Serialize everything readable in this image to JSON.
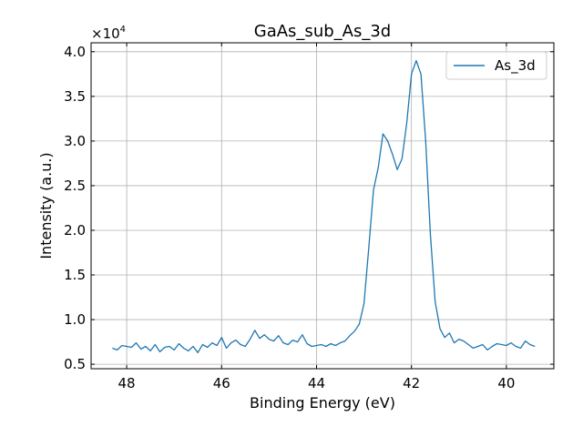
{
  "chart_data": {
    "type": "line",
    "title": "GaAs_sub_As_3d",
    "xlabel": "Binding Energy (eV)",
    "ylabel": "Intensity (a.u.)",
    "y_multiplier_base": "×10",
    "y_multiplier_exp": "4",
    "xlim": [
      48.75,
      39.0
    ],
    "ylim": [
      0.45,
      4.1
    ],
    "x_reversed": true,
    "grid": true,
    "legend_position": "upper-right",
    "x_ticks": [
      48,
      46,
      44,
      42,
      40
    ],
    "x_tick_labels": [
      "48",
      "46",
      "44",
      "42",
      "40"
    ],
    "y_ticks": [
      0.5,
      1.0,
      1.5,
      2.0,
      2.5,
      3.0,
      3.5,
      4.0
    ],
    "y_tick_labels": [
      "0.5",
      "1.0",
      "1.5",
      "2.0",
      "2.5",
      "3.0",
      "3.5",
      "4.0"
    ],
    "series": [
      {
        "name": "As_3d",
        "color": "#1f77b4",
        "x": [
          48.3,
          48.2,
          48.1,
          48.0,
          47.9,
          47.8,
          47.7,
          47.6,
          47.5,
          47.4,
          47.3,
          47.2,
          47.1,
          47.0,
          46.9,
          46.8,
          46.7,
          46.6,
          46.5,
          46.4,
          46.3,
          46.2,
          46.1,
          46.0,
          45.9,
          45.8,
          45.7,
          45.6,
          45.5,
          45.4,
          45.3,
          45.2,
          45.1,
          45.0,
          44.9,
          44.8,
          44.7,
          44.6,
          44.5,
          44.4,
          44.3,
          44.2,
          44.1,
          44.0,
          43.9,
          43.8,
          43.7,
          43.6,
          43.5,
          43.4,
          43.3,
          43.2,
          43.1,
          43.0,
          42.9,
          42.8,
          42.7,
          42.6,
          42.5,
          42.4,
          42.3,
          42.2,
          42.1,
          42.0,
          41.9,
          41.8,
          41.7,
          41.6,
          41.5,
          41.4,
          41.3,
          41.2,
          41.1,
          41.0,
          40.9,
          40.8,
          40.7,
          40.6,
          40.5,
          40.4,
          40.3,
          40.2,
          40.1,
          40.0,
          39.9,
          39.8,
          39.7,
          39.6,
          39.5,
          39.4
        ],
        "values": [
          0.68,
          0.66,
          0.71,
          0.7,
          0.69,
          0.74,
          0.67,
          0.7,
          0.65,
          0.72,
          0.64,
          0.69,
          0.7,
          0.66,
          0.73,
          0.68,
          0.65,
          0.7,
          0.63,
          0.72,
          0.69,
          0.74,
          0.71,
          0.8,
          0.68,
          0.74,
          0.77,
          0.72,
          0.7,
          0.78,
          0.88,
          0.79,
          0.83,
          0.78,
          0.76,
          0.82,
          0.74,
          0.72,
          0.77,
          0.75,
          0.83,
          0.73,
          0.7,
          0.71,
          0.72,
          0.7,
          0.73,
          0.71,
          0.74,
          0.76,
          0.82,
          0.87,
          0.95,
          1.18,
          1.8,
          2.45,
          2.7,
          3.08,
          3.0,
          2.85,
          2.68,
          2.8,
          3.2,
          3.75,
          3.9,
          3.75,
          3.0,
          1.95,
          1.2,
          0.9,
          0.8,
          0.85,
          0.74,
          0.78,
          0.76,
          0.72,
          0.68,
          0.7,
          0.72,
          0.66,
          0.7,
          0.73,
          0.72,
          0.71,
          0.74,
          0.7,
          0.68,
          0.76,
          0.72,
          0.7
        ]
      }
    ]
  }
}
